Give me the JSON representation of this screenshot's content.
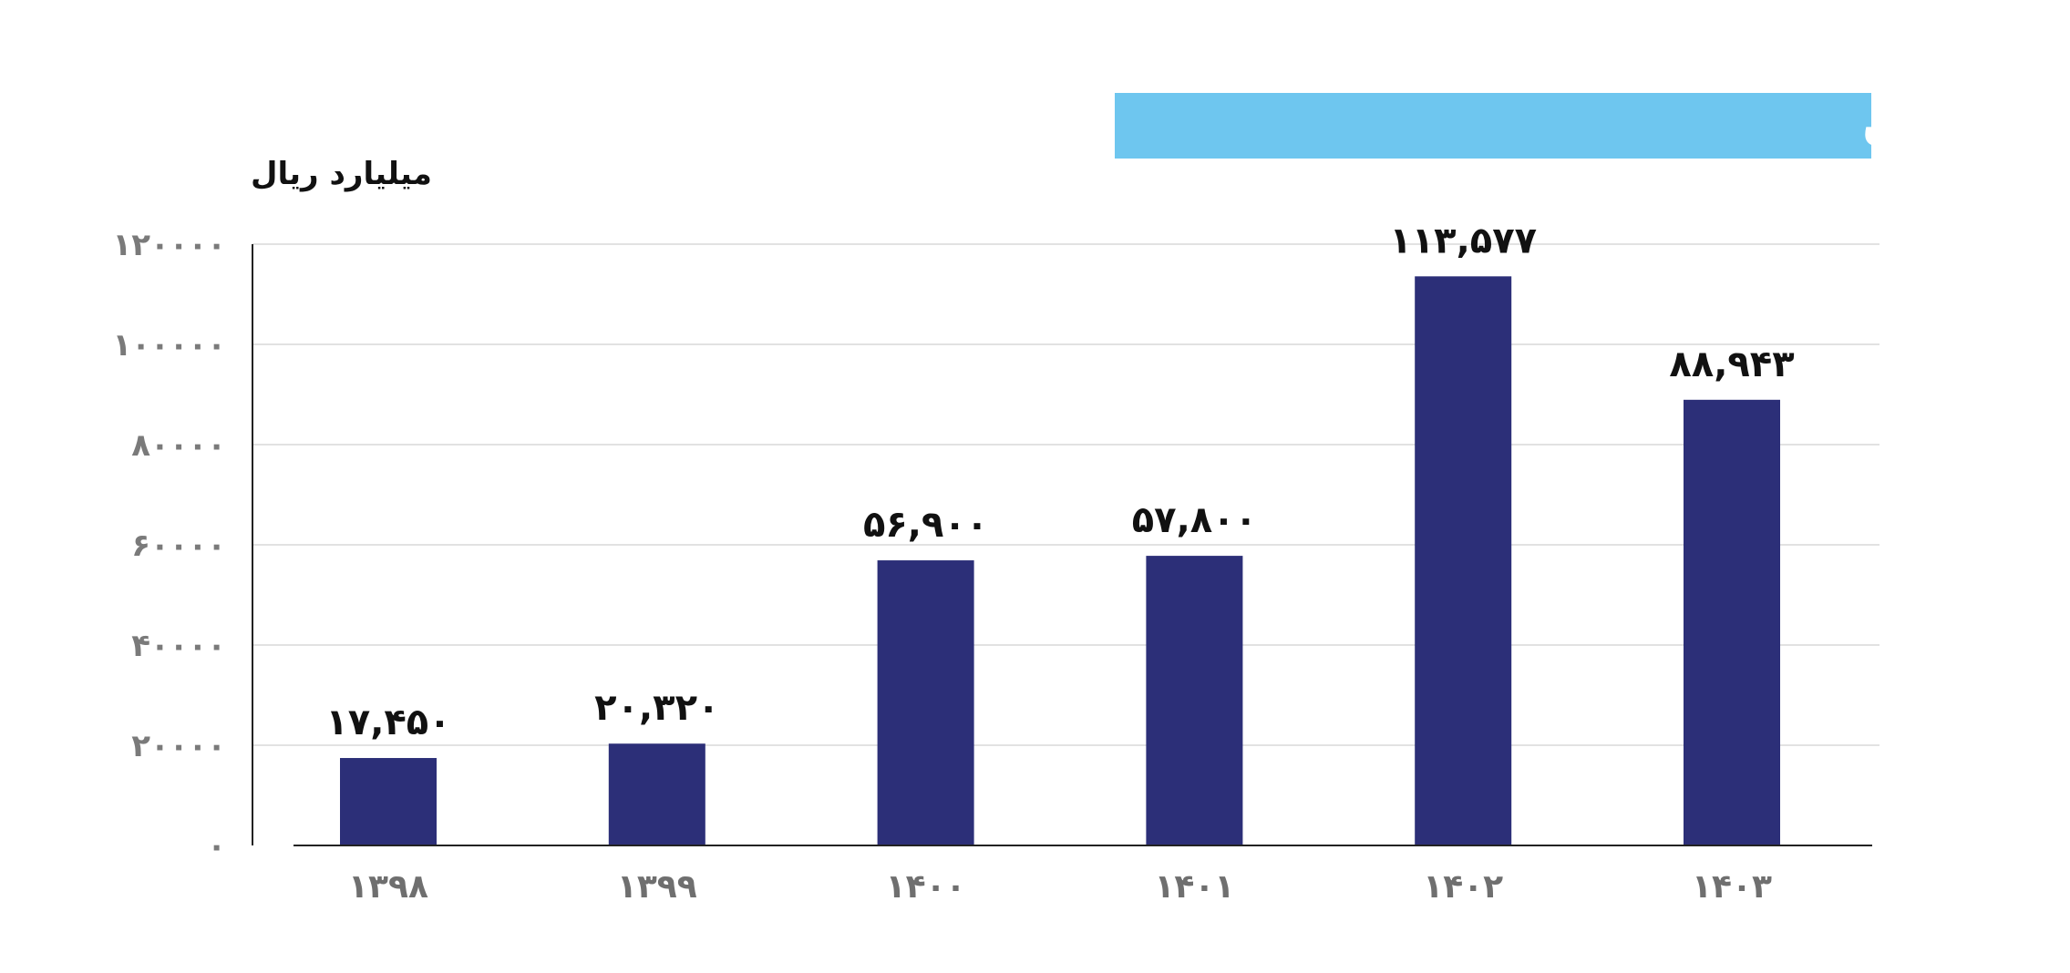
{
  "chart_data": {
    "type": "bar",
    "title": "سفارشات ابلاغ شده به شرکت های دانش بنیان",
    "ylabel": "میلیارد ریال",
    "xlabel": "",
    "categories": [
      "۱۳۹۸",
      "۱۳۹۹",
      "۱۴۰۰",
      "۱۴۰۱",
      "۱۴۰۲",
      "۱۴۰۳"
    ],
    "values": [
      17450,
      20320,
      56900,
      57800,
      113577,
      88943
    ],
    "value_labels": [
      "۱۷,۴۵۰",
      "۲۰,۳۲۰",
      "۵۶,۹۰۰",
      "۵۷,۸۰۰",
      "۱۱۳,۵۷۷",
      "۸۸,۹۴۳"
    ],
    "yticks": [
      0,
      20000,
      40000,
      60000,
      80000,
      100000,
      120000
    ],
    "ytick_labels": [
      "۰",
      "۲۰۰۰۰",
      "۴۰۰۰۰",
      "۶۰۰۰۰",
      "۸۰۰۰۰",
      "۱۰۰۰۰۰",
      "۱۲۰۰۰۰"
    ],
    "ylim": [
      0,
      120000
    ],
    "grid": true,
    "legend": "none",
    "colors": {
      "bar": "#2c2f78",
      "title_background": "#6ec6ef"
    }
  }
}
